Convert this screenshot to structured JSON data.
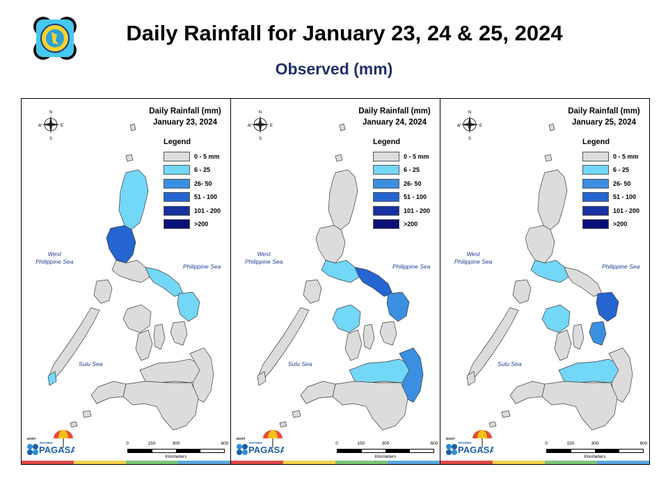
{
  "header": {
    "title": "Daily Rainfall for January 23, 24 & 25, 2024",
    "subtitle": "Observed (mm)"
  },
  "legend": {
    "title": "Legend",
    "classes": [
      {
        "label": "0 - 5 mm",
        "color": "#dcdcdc"
      },
      {
        "label": "6 - 25",
        "color": "#73d7f7"
      },
      {
        "label": "26- 50",
        "color": "#3b8fe0"
      },
      {
        "label": "51 - 100",
        "color": "#2565d0"
      },
      {
        "label": "101 - 200",
        "color": "#1830a0"
      },
      {
        "label": ">200",
        "color": "#0a1078"
      }
    ]
  },
  "compass_labels": {
    "n": "N",
    "s": "S",
    "e": "E",
    "w": "W"
  },
  "seas": {
    "west": "West\nPhilippine Sea",
    "east": "Philippine Sea",
    "sulu": "Sulu Sea"
  },
  "scale": {
    "ticks": [
      "0",
      "150",
      "300",
      "600"
    ],
    "unit": "Kilometers"
  },
  "footer_colors": [
    "#e04848",
    "#f2d24a",
    "#7cc47a",
    "#5aa7e0"
  ],
  "logo_text": {
    "small": "DOST",
    "mid": "PAYONG",
    "brand": "PAGASA"
  },
  "panels": [
    {
      "title_line1": "Daily Rainfall (mm)",
      "title_line2": "January 23, 2024",
      "highlights": [
        {
          "region": "northern-luzon",
          "class": 1
        },
        {
          "region": "central-luzon",
          "class": 3
        },
        {
          "region": "bicol",
          "class": 1
        },
        {
          "region": "samar",
          "class": 1
        },
        {
          "region": "palawan-tip",
          "class": 1
        }
      ]
    },
    {
      "title_line1": "Daily Rainfall (mm)",
      "title_line2": "January 24, 2024",
      "highlights": [
        {
          "region": "southern-luzon",
          "class": 1
        },
        {
          "region": "bicol",
          "class": 3
        },
        {
          "region": "samar",
          "class": 2
        },
        {
          "region": "visayas-west",
          "class": 1
        },
        {
          "region": "mindanao-east",
          "class": 2
        },
        {
          "region": "mindanao-north",
          "class": 1
        }
      ]
    },
    {
      "title_line1": "Daily Rainfall (mm)",
      "title_line2": "January 25, 2024",
      "highlights": [
        {
          "region": "southern-luzon",
          "class": 1
        },
        {
          "region": "samar",
          "class": 3
        },
        {
          "region": "leyte",
          "class": 2
        },
        {
          "region": "visayas-west",
          "class": 1
        },
        {
          "region": "mindanao-north",
          "class": 1
        }
      ]
    }
  ]
}
